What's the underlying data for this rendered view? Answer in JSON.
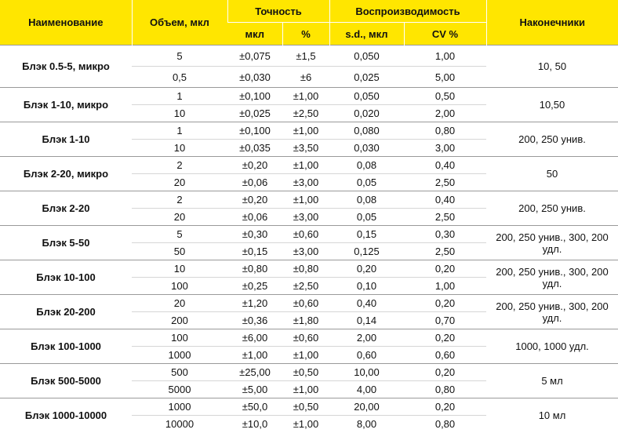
{
  "header": {
    "name": "Наименование",
    "volume": "Объем, мкл",
    "accuracy": "Точность",
    "reproducibility": "Воспроизводимость",
    "tips": "Наконечники",
    "acc_ul": "мкл",
    "acc_pct": "%",
    "sd": "s.d., мкл",
    "cv": "CV %"
  },
  "rows": [
    {
      "name": "Блэк 0.5-5, микро",
      "tips": "10, 50",
      "sub": [
        [
          "5",
          "±0,075",
          "±1,5",
          "0,050",
          "1,00"
        ],
        [
          "0,5",
          "±0,030",
          "±6",
          "0,025",
          "5,00"
        ]
      ]
    },
    {
      "name": "Блэк 1-10, микро",
      "tips": "10,50",
      "sub": [
        [
          "1",
          "±0,100",
          "±1,00",
          "0,050",
          "0,50"
        ],
        [
          "10",
          "±0,025",
          "±2,50",
          "0,020",
          "2,00"
        ]
      ]
    },
    {
      "name": "Блэк 1-10",
      "tips": "200, 250 унив.",
      "sub": [
        [
          "1",
          "±0,100",
          "±1,00",
          "0,080",
          "0,80"
        ],
        [
          "10",
          "±0,035",
          "±3,50",
          "0,030",
          "3,00"
        ]
      ]
    },
    {
      "name": "Блэк 2-20, микро",
      "tips": "50",
      "sub": [
        [
          "2",
          "±0,20",
          "±1,00",
          "0,08",
          "0,40"
        ],
        [
          "20",
          "±0,06",
          "±3,00",
          "0,05",
          "2,50"
        ]
      ]
    },
    {
      "name": "Блэк 2-20",
      "tips": "200, 250 унив.",
      "sub": [
        [
          "2",
          "±0,20",
          "±1,00",
          "0,08",
          "0,40"
        ],
        [
          "20",
          "±0,06",
          "±3,00",
          "0,05",
          "2,50"
        ]
      ]
    },
    {
      "name": "Блэк 5-50",
      "tips": "200, 250 унив., 300, 200 удл.",
      "sub": [
        [
          "5",
          "±0,30",
          "±0,60",
          "0,15",
          "0,30"
        ],
        [
          "50",
          "±0,15",
          "±3,00",
          "0,125",
          "2,50"
        ]
      ]
    },
    {
      "name": "Блэк 10-100",
      "tips": "200, 250 унив., 300, 200 удл.",
      "sub": [
        [
          "10",
          "±0,80",
          "±0,80",
          "0,20",
          "0,20"
        ],
        [
          "100",
          "±0,25",
          "±2,50",
          "0,10",
          "1,00"
        ]
      ]
    },
    {
      "name": "Блэк 20-200",
      "tips": "200, 250 унив., 300, 200 удл.",
      "sub": [
        [
          "20",
          "±1,20",
          "±0,60",
          "0,40",
          "0,20"
        ],
        [
          "200",
          "±0,36",
          "±1,80",
          "0,14",
          "0,70"
        ]
      ]
    },
    {
      "name": "Блэк 100-1000",
      "tips": "1000, 1000 удл.",
      "sub": [
        [
          "100",
          "±6,00",
          "±0,60",
          "2,00",
          "0,20"
        ],
        [
          "1000",
          "±1,00",
          "±1,00",
          "0,60",
          "0,60"
        ]
      ]
    },
    {
      "name": "Блэк 500-5000",
      "tips": "5 мл",
      "sub": [
        [
          "500",
          "±25,00",
          "±0,50",
          "10,00",
          "0,20"
        ],
        [
          "5000",
          "±5,00",
          "±1,00",
          "4,00",
          "0,80"
        ]
      ]
    },
    {
      "name": "Блэк 1000-10000",
      "tips": "10 мл",
      "sub": [
        [
          "1000",
          "±50,0",
          "±0,50",
          "20,00",
          "0,20"
        ],
        [
          "10000",
          "±10,0",
          "±1,00",
          "8,00",
          "0,80"
        ]
      ]
    }
  ]
}
